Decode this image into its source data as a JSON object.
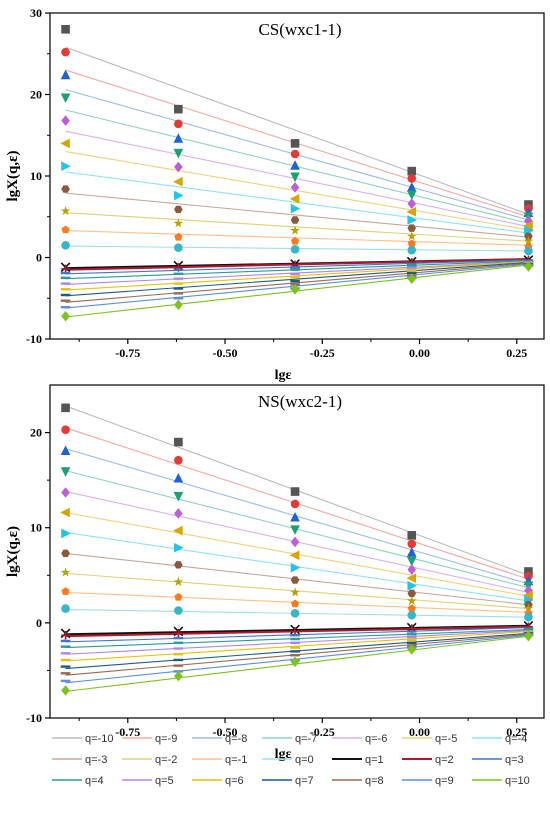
{
  "chart_data": [
    {
      "type": "scatter",
      "title": "CS(wxc1-1)",
      "xlabel": "lgε",
      "ylabel": "lgX(q,ε)",
      "xlim": [
        -0.95,
        0.32
      ],
      "ylim": [
        -10,
        30
      ],
      "xticks": [
        "-0.75",
        "-0.50",
        "-0.25",
        "0.00",
        "0.25"
      ],
      "xtick_values": [
        -0.75,
        -0.5,
        -0.25,
        0.0,
        0.25
      ],
      "yticks": [
        "-10",
        "0",
        "10",
        "20",
        "30"
      ],
      "ytick_values": [
        -10,
        0,
        10,
        20,
        30
      ],
      "x": [
        -0.91,
        -0.62,
        -0.32,
        -0.02,
        0.28
      ],
      "series": [
        {
          "name": "q=-10",
          "values": [
            28.0,
            18.2,
            14.0,
            10.6,
            6.5
          ],
          "fit": [
            25.8,
            5.3
          ]
        },
        {
          "name": "q=-9",
          "values": [
            25.2,
            16.4,
            12.7,
            9.7,
            6.0
          ],
          "fit": [
            23.0,
            5.0
          ]
        },
        {
          "name": "q=-8",
          "values": [
            22.4,
            14.6,
            11.3,
            8.6,
            5.5
          ],
          "fit": [
            20.6,
            4.6
          ]
        },
        {
          "name": "q=-7",
          "values": [
            19.6,
            12.8,
            9.9,
            7.7,
            5.0
          ],
          "fit": [
            18.1,
            4.2
          ]
        },
        {
          "name": "q=-6",
          "values": [
            16.8,
            11.1,
            8.6,
            6.6,
            4.5
          ],
          "fit": [
            15.5,
            3.8
          ]
        },
        {
          "name": "q=-5",
          "values": [
            14.0,
            9.3,
            7.2,
            5.6,
            3.9
          ],
          "fit": [
            13.0,
            3.4
          ]
        },
        {
          "name": "q=-4",
          "values": [
            11.2,
            7.6,
            6.0,
            4.6,
            3.3
          ],
          "fit": [
            10.5,
            3.0
          ]
        },
        {
          "name": "q=-3",
          "values": [
            8.4,
            5.9,
            4.6,
            3.6,
            2.6
          ],
          "fit": [
            7.9,
            2.5
          ]
        },
        {
          "name": "q=-2",
          "values": [
            5.7,
            4.2,
            3.3,
            2.6,
            2.0
          ],
          "fit": [
            5.5,
            2.0
          ]
        },
        {
          "name": "q=-1",
          "values": [
            3.4,
            2.5,
            2.0,
            1.7,
            1.3
          ],
          "fit": [
            3.3,
            1.5
          ]
        },
        {
          "name": "q=0",
          "values": [
            1.5,
            1.2,
            1.0,
            0.9,
            0.8
          ],
          "fit": [
            1.4,
            0.8
          ]
        },
        {
          "name": "q=1",
          "values": [
            -1.2,
            -1.0,
            -0.8,
            -0.5,
            -0.3
          ],
          "fit": [
            -1.3,
            -0.2
          ]
        },
        {
          "name": "q=2",
          "values": [
            -1.4,
            -1.2,
            -0.9,
            -0.6,
            -0.3
          ],
          "fit": [
            -1.5,
            -0.2
          ]
        },
        {
          "name": "q=3",
          "values": [
            -1.9,
            -1.5,
            -1.2,
            -0.8,
            -0.4
          ],
          "fit": [
            -2.0,
            -0.3
          ]
        },
        {
          "name": "q=4",
          "values": [
            -2.5,
            -2.0,
            -1.5,
            -1.0,
            -0.5
          ],
          "fit": [
            -2.6,
            -0.4
          ]
        },
        {
          "name": "q=5",
          "values": [
            -3.2,
            -2.6,
            -2.0,
            -1.3,
            -0.6
          ],
          "fit": [
            -3.3,
            -0.5
          ]
        },
        {
          "name": "q=6",
          "values": [
            -3.9,
            -3.2,
            -2.4,
            -1.6,
            -0.7
          ],
          "fit": [
            -4.0,
            -0.5
          ]
        },
        {
          "name": "q=7",
          "values": [
            -4.6,
            -3.8,
            -2.9,
            -1.9,
            -0.8
          ],
          "fit": [
            -4.7,
            -0.6
          ]
        },
        {
          "name": "q=8",
          "values": [
            -5.3,
            -4.4,
            -3.3,
            -2.2,
            -0.9
          ],
          "fit": [
            -5.5,
            -0.7
          ]
        },
        {
          "name": "q=9",
          "values": [
            -6.1,
            -5.0,
            -3.8,
            -2.5,
            -1.0
          ],
          "fit": [
            -6.2,
            -0.8
          ]
        },
        {
          "name": "q=10",
          "values": [
            -7.2,
            -5.8,
            -3.9,
            -2.6,
            -1.1
          ],
          "fit": [
            -7.3,
            -0.9
          ]
        }
      ]
    },
    {
      "type": "scatter",
      "title": "NS(wxc2-1)",
      "xlabel": "lgε",
      "ylabel": "lgX(q,ε)",
      "xlim": [
        -0.95,
        0.32
      ],
      "ylim": [
        -10,
        25
      ],
      "xticks": [
        "-0.75",
        "-0.50",
        "-0.25",
        "0.00",
        "0.25"
      ],
      "xtick_values": [
        -0.75,
        -0.5,
        -0.25,
        0.0,
        0.25
      ],
      "yticks": [
        "-10",
        "0",
        "10",
        "20"
      ],
      "ytick_values": [
        -10,
        0,
        10,
        20
      ],
      "x": [
        -0.91,
        -0.62,
        -0.32,
        -0.02,
        0.28
      ],
      "series": [
        {
          "name": "q=-10",
          "values": [
            22.6,
            19.0,
            13.8,
            9.2,
            5.4
          ],
          "fit": [
            22.8,
            5.0
          ]
        },
        {
          "name": "q=-9",
          "values": [
            20.3,
            17.1,
            12.5,
            8.3,
            4.9
          ],
          "fit": [
            20.5,
            4.6
          ]
        },
        {
          "name": "q=-8",
          "values": [
            18.1,
            15.2,
            11.1,
            7.4,
            4.4
          ],
          "fit": [
            18.3,
            4.1
          ]
        },
        {
          "name": "q=-7",
          "values": [
            15.9,
            13.3,
            9.8,
            6.5,
            3.9
          ],
          "fit": [
            16.0,
            3.7
          ]
        },
        {
          "name": "q=-6",
          "values": [
            13.7,
            11.5,
            8.5,
            5.6,
            3.4
          ],
          "fit": [
            13.8,
            3.2
          ]
        },
        {
          "name": "q=-5",
          "values": [
            11.6,
            9.7,
            7.1,
            4.7,
            2.9
          ],
          "fit": [
            11.6,
            2.8
          ]
        },
        {
          "name": "q=-4",
          "values": [
            9.4,
            7.9,
            5.8,
            3.9,
            2.4
          ],
          "fit": [
            9.5,
            2.3
          ]
        },
        {
          "name": "q=-3",
          "values": [
            7.3,
            6.1,
            4.5,
            3.1,
            1.9
          ],
          "fit": [
            7.3,
            1.9
          ]
        },
        {
          "name": "q=-2",
          "values": [
            5.3,
            4.3,
            3.2,
            2.3,
            1.5
          ],
          "fit": [
            5.2,
            1.5
          ]
        },
        {
          "name": "q=-1",
          "values": [
            3.3,
            2.7,
            2.0,
            1.5,
            1.0
          ],
          "fit": [
            3.2,
            1.1
          ]
        },
        {
          "name": "q=0",
          "values": [
            1.5,
            1.3,
            1.0,
            0.8,
            0.6
          ],
          "fit": [
            1.4,
            0.6
          ]
        },
        {
          "name": "q=1",
          "values": [
            -1.1,
            -0.9,
            -0.7,
            -0.5,
            -0.3
          ],
          "fit": [
            -1.2,
            -0.3
          ]
        },
        {
          "name": "q=2",
          "values": [
            -1.3,
            -1.1,
            -0.9,
            -0.6,
            -0.4
          ],
          "fit": [
            -1.4,
            -0.4
          ]
        },
        {
          "name": "q=3",
          "values": [
            -1.9,
            -1.6,
            -1.3,
            -0.9,
            -0.6
          ],
          "fit": [
            -2.0,
            -0.5
          ]
        },
        {
          "name": "q=4",
          "values": [
            -2.5,
            -2.1,
            -1.7,
            -1.2,
            -0.7
          ],
          "fit": [
            -2.6,
            -0.7
          ]
        },
        {
          "name": "q=5",
          "values": [
            -3.2,
            -2.7,
            -2.1,
            -1.5,
            -0.9
          ],
          "fit": [
            -3.3,
            -0.8
          ]
        },
        {
          "name": "q=6",
          "values": [
            -3.9,
            -3.3,
            -2.6,
            -1.8,
            -1.0
          ],
          "fit": [
            -4.0,
            -0.9
          ]
        },
        {
          "name": "q=7",
          "values": [
            -4.6,
            -3.9,
            -3.0,
            -2.1,
            -1.1
          ],
          "fit": [
            -4.8,
            -1.1
          ]
        },
        {
          "name": "q=8",
          "values": [
            -5.3,
            -4.5,
            -3.4,
            -2.4,
            -1.2
          ],
          "fit": [
            -5.5,
            -1.2
          ]
        },
        {
          "name": "q=9",
          "values": [
            -6.1,
            -5.1,
            -3.9,
            -2.6,
            -1.3
          ],
          "fit": [
            -6.3,
            -1.3
          ]
        },
        {
          "name": "q=10",
          "values": [
            -7.1,
            -5.6,
            -4.1,
            -2.8,
            -1.4
          ],
          "fit": [
            -7.2,
            -1.4
          ]
        }
      ]
    }
  ],
  "legend": {
    "placement": "bottom",
    "columns": 7,
    "items": [
      "q=-10",
      "q=-9",
      "q=-8",
      "q=-7",
      "q=-6",
      "q=-5",
      "q=-4",
      "q=-3",
      "q=-2",
      "q=-1",
      "q=0",
      "q=1",
      "q=2",
      "q=3",
      "q=4",
      "q=5",
      "q=6",
      "q=7",
      "q=8",
      "q=9",
      "q=10"
    ]
  },
  "series_style": {
    "q=-10": {
      "color": "#555555",
      "marker": "square",
      "line": "#bbbbbb"
    },
    "q=-9": {
      "color": "#e53935",
      "marker": "circle",
      "line": "#f4a8a5"
    },
    "q=-8": {
      "color": "#1e63d6",
      "marker": "triangle",
      "line": "#9dbbe9"
    },
    "q=-7": {
      "color": "#19a36f",
      "marker": "triangle-down",
      "line": "#8fd5b8"
    },
    "q=-6": {
      "color": "#c05bd9",
      "marker": "diamond",
      "line": "#dcb2ec"
    },
    "q=-5": {
      "color": "#d9a400",
      "marker": "triangle-left",
      "line": "#eed27a"
    },
    "q=-4": {
      "color": "#20c4e8",
      "marker": "triangle-right",
      "line": "#8fe3f3"
    },
    "q=-3": {
      "color": "#8b5a3c",
      "marker": "hexagon",
      "line": "#c7a89a"
    },
    "q=-2": {
      "color": "#b8a000",
      "marker": "star",
      "line": "#ddd17a"
    },
    "q=-1": {
      "color": "#ff7a1a",
      "marker": "pentagon",
      "line": "#ffc08f"
    },
    "q=0": {
      "color": "#35b6c9",
      "marker": "circle",
      "line": "#a3dde6"
    },
    "q=1": {
      "color": "#111111",
      "marker": "x",
      "line": "#111111"
    },
    "q=2": {
      "color": "#b2182b",
      "marker": "plus",
      "line": "#b2182b"
    },
    "q=3": {
      "color": "#3f74d6",
      "marker": "dash",
      "line": "#3f74d6"
    },
    "q=4": {
      "color": "#2a9d8f",
      "marker": "dash",
      "line": "#2a9d8f"
    },
    "q=5": {
      "color": "#b084f0",
      "marker": "dash",
      "line": "#b084f0"
    },
    "q=6": {
      "color": "#e6c300",
      "marker": "dash",
      "line": "#e6c300"
    },
    "q=7": {
      "color": "#1f5a8a",
      "marker": "dash",
      "line": "#1f5a8a"
    },
    "q=8": {
      "color": "#9a6b54",
      "marker": "dash",
      "line": "#9a6b54"
    },
    "q=9": {
      "color": "#5b8fe0",
      "marker": "dash",
      "line": "#5b8fe0"
    },
    "q=10": {
      "color": "#7dc31e",
      "marker": "diamond",
      "line": "#7dc31e"
    }
  }
}
